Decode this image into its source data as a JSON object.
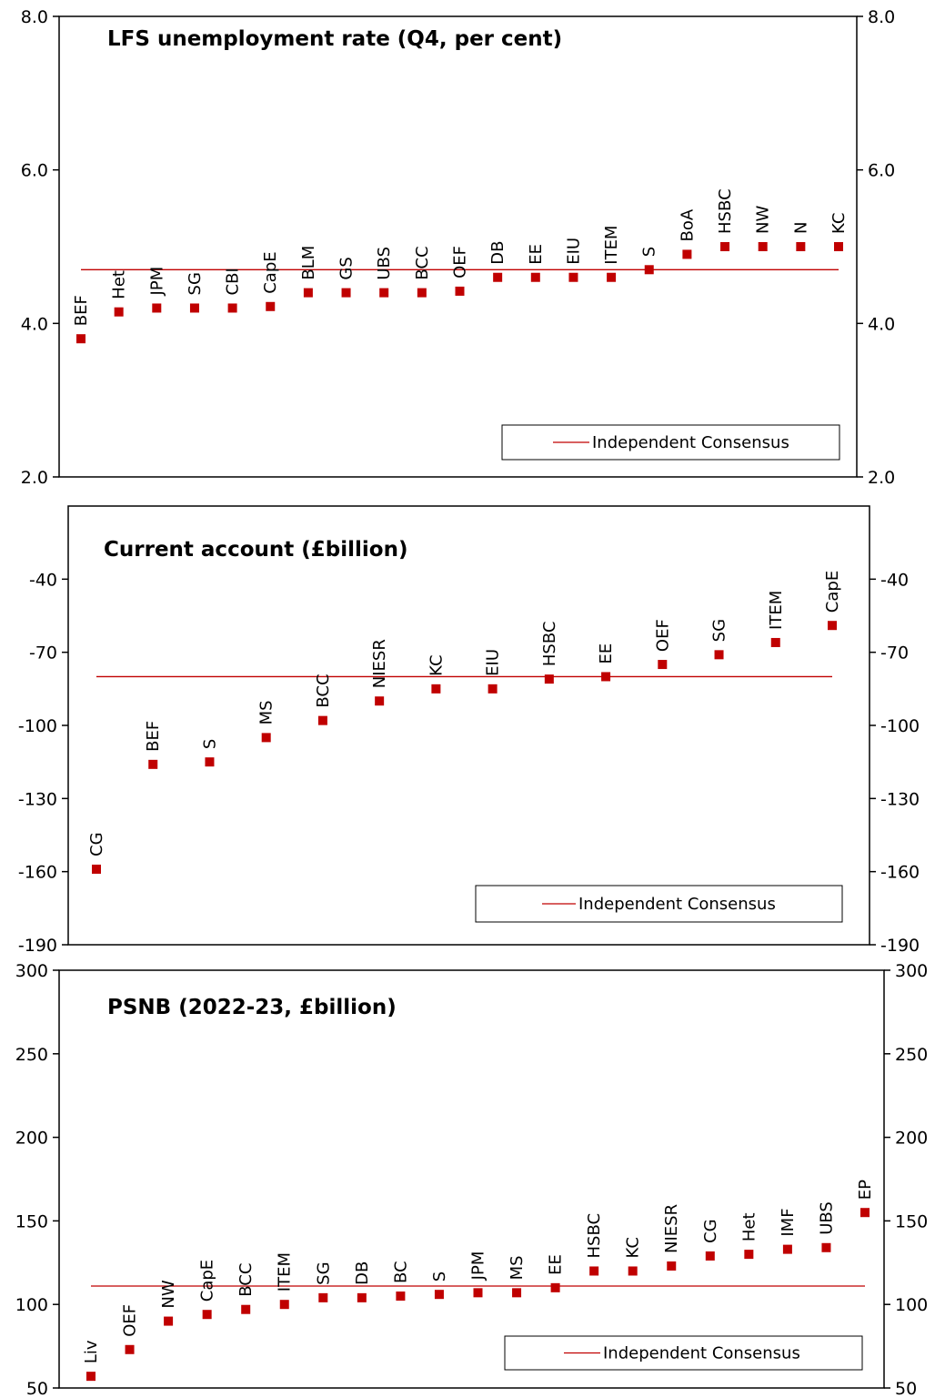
{
  "chart_data": [
    {
      "type": "scatter",
      "title": "LFS unemployment rate (Q4, per cent)",
      "ylim": [
        2.0,
        8.0
      ],
      "yticks": [
        "2.0",
        "4.0",
        "6.0",
        "8.0"
      ],
      "grid": false,
      "legend": {
        "label": "Independent Consensus",
        "placement": "bottom-right"
      },
      "consensus": 4.7,
      "colors": {
        "points": "#c00000",
        "consensus": "#c00000"
      },
      "categories": [
        "BEF",
        "Het",
        "JPM",
        "SG",
        "CBI",
        "CapE",
        "BLM",
        "GS",
        "UBS",
        "BCC",
        "OEF",
        "DB",
        "EE",
        "EIU",
        "ITEM",
        "S",
        "BoA",
        "HSBC",
        "NW",
        "N",
        "KC"
      ],
      "values": [
        3.8,
        4.15,
        4.2,
        4.2,
        4.2,
        4.22,
        4.4,
        4.4,
        4.4,
        4.4,
        4.42,
        4.6,
        4.6,
        4.6,
        4.6,
        4.7,
        4.9,
        5.0,
        5.0,
        5.0,
        5.0
      ]
    },
    {
      "type": "scatter",
      "title": "Current account (£billion)",
      "ylim": [
        -190,
        -10
      ],
      "yticks": [
        "-190",
        "-160",
        "-130",
        "-100",
        "-70",
        "-40"
      ],
      "grid": false,
      "legend": {
        "label": "Independent Consensus",
        "placement": "bottom-right"
      },
      "consensus": -80,
      "colors": {
        "points": "#c00000",
        "consensus": "#c00000"
      },
      "categories": [
        "CG",
        "BEF",
        "S",
        "MS",
        "BCC",
        "NIESR",
        "KC",
        "EIU",
        "HSBC",
        "EE",
        "OEF",
        "SG",
        "ITEM",
        "CapE"
      ],
      "values": [
        -159,
        -116,
        -115,
        -105,
        -98,
        -90,
        -85,
        -85,
        -81,
        -80,
        -75,
        -71,
        -66,
        -59
      ]
    },
    {
      "type": "scatter",
      "title": "PSNB (2022-23, £billion)",
      "ylim": [
        50,
        300
      ],
      "yticks": [
        "50",
        "100",
        "150",
        "200",
        "250",
        "300"
      ],
      "grid": false,
      "legend": {
        "label": "Independent Consensus",
        "placement": "bottom-right"
      },
      "consensus": 111,
      "colors": {
        "points": "#c00000",
        "consensus": "#c00000"
      },
      "categories": [
        "Liv",
        "OEF",
        "NW",
        "CapE",
        "BCC",
        "ITEM",
        "SG",
        "DB",
        "BC",
        "S",
        "JPM",
        "MS",
        "EE",
        "HSBC",
        "KC",
        "NIESR",
        "CG",
        "Het",
        "IMF",
        "UBS",
        "EP"
      ],
      "values": [
        57,
        73,
        90,
        94,
        97,
        100,
        104,
        104,
        105,
        106,
        107,
        107,
        110,
        120,
        120,
        123,
        129,
        130,
        133,
        134,
        155
      ]
    }
  ]
}
